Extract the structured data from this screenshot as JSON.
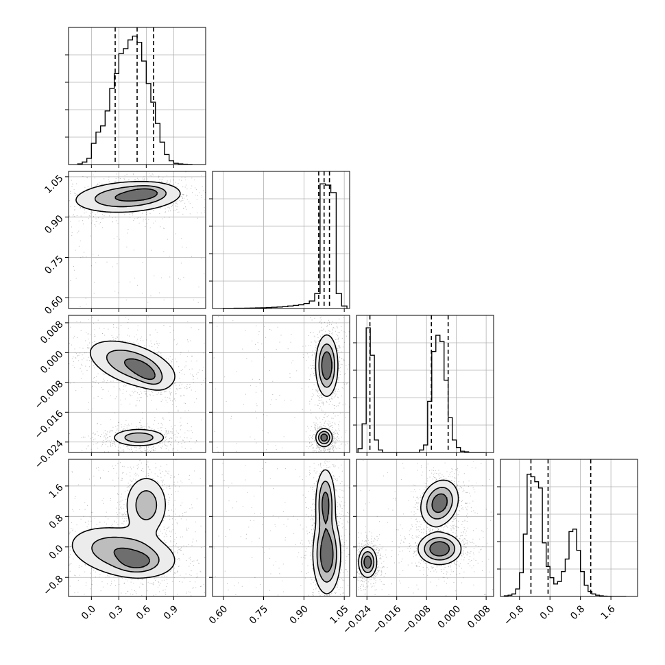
{
  "chart_data": {
    "type": "corner",
    "grid": true,
    "parameters": [
      {
        "range": [
          -0.25,
          1.25
        ],
        "ticks": [
          0.0,
          0.3,
          0.6,
          0.9
        ],
        "tick_labels": [
          "0.0",
          "0.3",
          "0.6",
          "0.9"
        ]
      },
      {
        "range": [
          0.56,
          1.07
        ],
        "ticks": [
          0.6,
          0.75,
          0.9,
          1.05
        ],
        "tick_labels": [
          "0.60",
          "0.75",
          "0.90",
          "1.05"
        ]
      },
      {
        "range": [
          -0.0268,
          0.01
        ],
        "ticks": [
          -0.024,
          -0.016,
          -0.008,
          0.0,
          0.008
        ],
        "tick_labels": [
          "−0.024",
          "−0.016",
          "−0.008",
          "0.000",
          "0.008"
        ]
      },
      {
        "range": [
          -1.3,
          2.3
        ],
        "ticks": [
          -0.8,
          0.0,
          0.8,
          1.6
        ],
        "tick_labels": [
          "−0.8",
          "0.0",
          "0.8",
          "1.6"
        ]
      }
    ],
    "histograms": [
      {
        "param": 0,
        "bin_edges": [
          -0.15,
          -0.1,
          -0.05,
          0,
          0.05,
          0.1,
          0.15,
          0.2,
          0.25,
          0.3,
          0.35,
          0.4,
          0.45,
          0.5,
          0.55,
          0.6,
          0.65,
          0.7,
          0.75,
          0.8,
          0.85,
          0.9,
          0.95,
          1.0,
          1.05,
          1.1
        ],
        "counts": [
          0.005,
          0.02,
          0.05,
          0.17,
          0.26,
          0.31,
          0.43,
          0.61,
          0.73,
          0.89,
          0.93,
          1.0,
          1.03,
          0.98,
          0.83,
          0.65,
          0.5,
          0.33,
          0.18,
          0.08,
          0.03,
          0.01,
          0.005,
          0.002,
          0.001
        ],
        "quantiles": [
          0.26,
          0.5,
          0.68
        ],
        "ylim": [
          0,
          1.1
        ]
      },
      {
        "param": 1,
        "bin_edges": [
          0.6,
          0.62,
          0.64,
          0.66,
          0.68,
          0.7,
          0.72,
          0.74,
          0.76,
          0.78,
          0.8,
          0.82,
          0.84,
          0.86,
          0.88,
          0.9,
          0.92,
          0.94,
          0.96,
          0.98,
          1.0,
          1.02,
          1.04,
          1.06
        ],
        "counts": [
          0.001,
          0.001,
          0.002,
          0.002,
          0.003,
          0.004,
          0.005,
          0.006,
          0.008,
          0.01,
          0.012,
          0.015,
          0.02,
          0.025,
          0.03,
          0.04,
          0.06,
          0.12,
          1.0,
          0.99,
          0.93,
          0.12,
          0.02
        ],
        "quantiles": [
          0.955,
          0.975,
          0.995
        ],
        "ylim": [
          0,
          1.1
        ]
      },
      {
        "param": 2,
        "bin_edges": [
          -0.0264,
          -0.0253,
          -0.0242,
          -0.0231,
          -0.022,
          -0.0209,
          -0.0198,
          -0.0187,
          -0.0176,
          -0.0165,
          -0.0154,
          -0.0143,
          -0.0132,
          -0.0121,
          -0.011,
          -0.0099,
          -0.0088,
          -0.0077,
          -0.0066,
          -0.0055,
          -0.0044,
          -0.0033,
          -0.0022,
          -0.0011,
          0.0,
          0.0011,
          0.0022,
          0.0033,
          0.0044,
          0.0055,
          0.0066,
          0.0077
        ],
        "counts": [
          0.03,
          0.23,
          1.0,
          0.78,
          0.1,
          0.02,
          0,
          0,
          0,
          0,
          0,
          0,
          0,
          0,
          0,
          0.02,
          0.06,
          0.41,
          0.81,
          0.94,
          0.89,
          0.58,
          0.28,
          0.1,
          0.04,
          0.01,
          0.005,
          0,
          0,
          0,
          0
        ],
        "quantiles": [
          -0.0232,
          -0.0067,
          -0.0022
        ],
        "ylim": [
          0,
          1.1
        ]
      },
      {
        "param": 3,
        "bin_edges": [
          -1.2,
          -1.1,
          -1.0,
          -0.9,
          -0.8,
          -0.7,
          -0.6,
          -0.5,
          -0.4,
          -0.3,
          -0.2,
          -0.1,
          0.0,
          0.1,
          0.2,
          0.3,
          0.4,
          0.5,
          0.6,
          0.7,
          0.8,
          0.9,
          1.0,
          1.1,
          1.2,
          1.3,
          1.4,
          1.5,
          1.6,
          1.7,
          1.8,
          1.9,
          2.0
        ],
        "counts": [
          0.005,
          0.01,
          0.02,
          0.06,
          0.19,
          0.5,
          0.98,
          0.96,
          0.92,
          0.87,
          0.43,
          0.24,
          0.15,
          0.1,
          0.12,
          0.2,
          0.3,
          0.52,
          0.54,
          0.37,
          0.2,
          0.09,
          0.04,
          0.02,
          0.01,
          0.005,
          0.002,
          0.001,
          0,
          0,
          0,
          0
        ],
        "quantiles": [
          -0.5,
          -0.05,
          1.07
        ],
        "ylim": [
          0,
          1.1
        ]
      }
    ],
    "density_clusters": [
      {
        "x": 0,
        "y": 1,
        "components": [
          {
            "cx": 0.4,
            "cy": 0.975,
            "sx": 0.3,
            "sy": 0.03,
            "rho": 0.2,
            "w": 1.0
          },
          {
            "cx": 0.6,
            "cy": 0.99,
            "sx": 0.12,
            "sy": 0.015,
            "rho": 0.1,
            "w": 0.6
          }
        ]
      },
      {
        "x": 0,
        "y": 2,
        "components": [
          {
            "cx": 0.45,
            "cy": -0.0032,
            "sx": 0.25,
            "sy": 0.0034,
            "rho": -0.5,
            "w": 1.0
          },
          {
            "cx": 0.6,
            "cy": -0.0055,
            "sx": 0.1,
            "sy": 0.002,
            "rho": -0.6,
            "w": 0.7
          },
          {
            "cx": 0.52,
            "cy": -0.0228,
            "sx": 0.15,
            "sy": 0.0012,
            "rho": 0.0,
            "w": 0.9
          }
        ]
      },
      {
        "x": 1,
        "y": 2,
        "components": [
          {
            "cx": 0.985,
            "cy": -0.0035,
            "sx": 0.02,
            "sy": 0.004,
            "rho": 0.0,
            "w": 1.0
          },
          {
            "cx": 0.975,
            "cy": -0.0228,
            "sx": 0.015,
            "sy": 0.0012,
            "rho": 0.0,
            "w": 0.9
          }
        ]
      },
      {
        "x": 0,
        "y": 3,
        "components": [
          {
            "cx": 0.35,
            "cy": -0.15,
            "sx": 0.3,
            "sy": 0.35,
            "rho": -0.3,
            "w": 1.0
          },
          {
            "cx": 0.5,
            "cy": -0.4,
            "sx": 0.12,
            "sy": 0.15,
            "rho": 0.0,
            "w": 0.7
          },
          {
            "cx": 0.6,
            "cy": 1.1,
            "sx": 0.12,
            "sy": 0.4,
            "rho": 0.0,
            "w": 0.8
          }
        ]
      },
      {
        "x": 1,
        "y": 3,
        "components": [
          {
            "cx": 0.98,
            "cy": 1.15,
            "sx": 0.018,
            "sy": 0.45,
            "rho": 0.0,
            "w": 0.8
          },
          {
            "cx": 0.985,
            "cy": -0.2,
            "sx": 0.025,
            "sy": 0.5,
            "rho": 0.0,
            "w": 1.0
          }
        ]
      },
      {
        "x": 2,
        "y": 3,
        "components": [
          {
            "cx": -0.0238,
            "cy": -0.4,
            "sx": 0.0012,
            "sy": 0.2,
            "rho": 0.0,
            "w": 0.9
          },
          {
            "cx": -0.0045,
            "cy": 1.15,
            "sx": 0.0025,
            "sy": 0.3,
            "rho": 0.2,
            "w": 0.9
          },
          {
            "cx": -0.0045,
            "cy": -0.05,
            "sx": 0.0028,
            "sy": 0.2,
            "rho": 0.0,
            "w": 1.0
          }
        ]
      }
    ]
  }
}
